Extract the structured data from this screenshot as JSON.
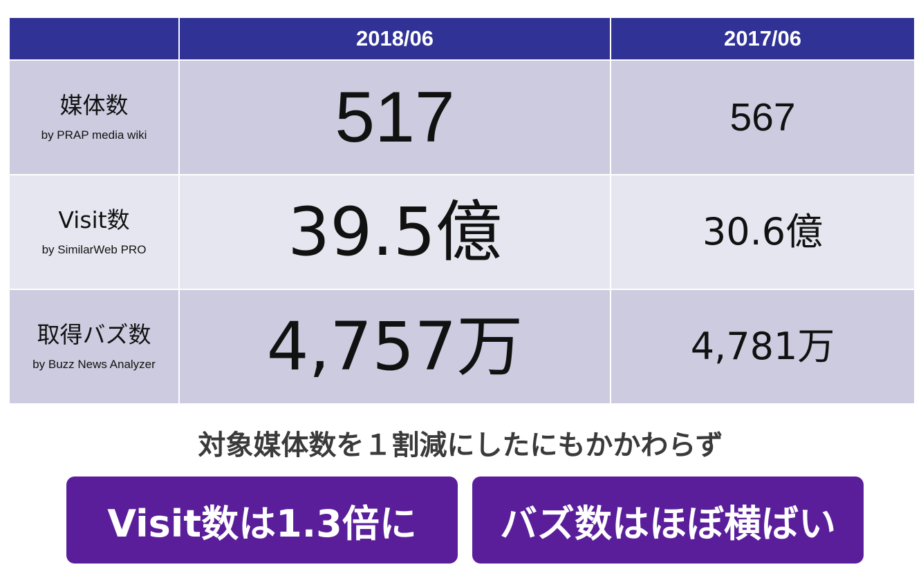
{
  "table": {
    "header": {
      "col0": "",
      "col1": "2018/06",
      "col2": "2017/06"
    },
    "rows": [
      {
        "label": "媒体数",
        "source": "by PRAP media wiki",
        "value_2018": "517",
        "value_2017": "567"
      },
      {
        "label": "Visit数",
        "source": "by SimilarWeb PRO",
        "value_2018": "39.5億",
        "value_2017": "30.6億"
      },
      {
        "label": "取得バズ数",
        "source": "by Buzz News Analyzer",
        "value_2018": "4,757万",
        "value_2017": "4,781万"
      }
    ]
  },
  "caption": "対象媒体数を１割減にしたにもかかわらず",
  "callouts": {
    "left": "Visit数は1.3倍に",
    "right": "バズ数はほぼ横ばい"
  },
  "colors": {
    "header_bg": "#303296",
    "row_dark": "#cccbdf",
    "row_light": "#e6e6f0",
    "callout_bg": "#5a1e9a",
    "caption_text": "#3a3a3a"
  }
}
